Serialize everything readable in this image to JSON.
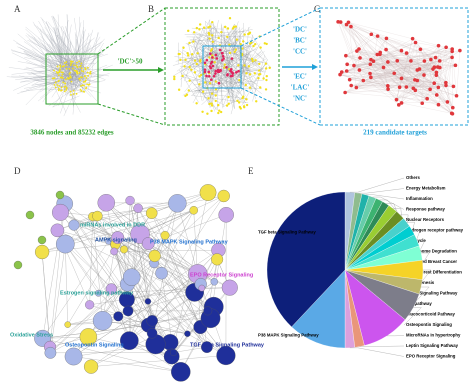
{
  "panels": {
    "A": {
      "label": "A",
      "caption": "3846 nodes and 85232 edges"
    },
    "B": {
      "label": "B",
      "arrow_label": "'DC'>50"
    },
    "C": {
      "label": "C",
      "criteria": [
        "'DC'",
        "'BC'",
        "'CC'",
        "'EC'",
        "'LAC'",
        "'NC'"
      ],
      "caption": "219 candidate targets"
    },
    "D": {
      "label": "D",
      "node_labels": [
        "miRNAs involved in DDR",
        "AMPK signaling",
        "P38 MAPK Signaling Pathway",
        "EPO Receptor Signaling",
        "Estrogen signaling pathway",
        "Oxidative Stress",
        "Osteopontin Signaling",
        "TGF beta Signaling Pathway"
      ]
    },
    "E": {
      "label": "E"
    }
  },
  "chart_data": {
    "type": "pie",
    "categories": [
      "Others",
      "Energy Metabolism",
      "Inflammation",
      "Response pathway",
      "Nuclear Receptors",
      "Androgen receptor pathway",
      "Cell cycle",
      "Proteasome Degradation",
      "Integrated Breast Cancer",
      "Neural Crest Differentiation",
      "Adipogenesis",
      "Notch Signaling Pathway",
      "Fas pathway",
      "Glucocorticoid Pathway",
      "Osteopontin Signaling",
      "MicroRNAs in hypertrophy",
      "Leptin Signaling Pathway",
      "EPO Receptor Signaling",
      "P38 MAPK Signaling Pathway",
      "TGF beta Signaling Pathway"
    ],
    "values": [
      2,
      1.5,
      1.5,
      1.5,
      1.5,
      1.5,
      2,
      2,
      2,
      2,
      2.5,
      3,
      4,
      3,
      6,
      10,
      2,
      2,
      12,
      38
    ],
    "colors": [
      "#b0c4de",
      "#8fbc8f",
      "#20b2aa",
      "#66cdaa",
      "#3cb371",
      "#2e8b57",
      "#9acd32",
      "#6b8e23",
      "#48d1cc",
      "#00ced1",
      "#40e0d0",
      "#7fffd4",
      "#f5d327",
      "#bdb76b",
      "#7d7d8a",
      "#cc55ee",
      "#e9967a",
      "#dda0dd",
      "#5aa9e6",
      "#0d1f7a"
    ]
  }
}
